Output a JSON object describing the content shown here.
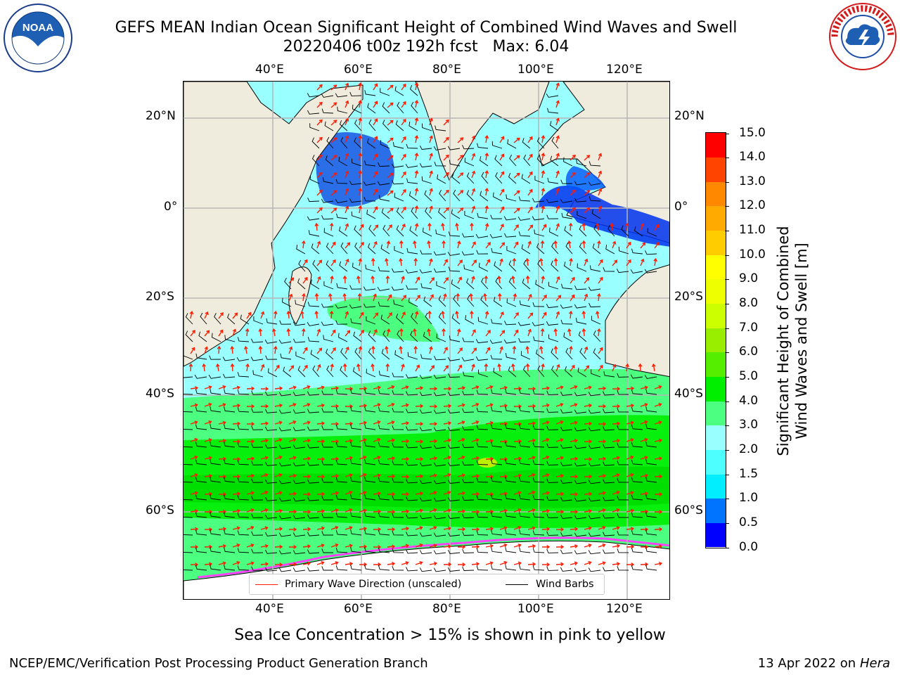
{
  "title": {
    "line1": "GEFS MEAN Indian Ocean Significant Height of Combined Wind Waves and Swell",
    "line2": "20220406 t00z 192h fcst   Max: 6.04"
  },
  "logos": {
    "left": {
      "text": "NOAA",
      "ring_text": "NATIONAL OCEANIC AND ATMOSPHERIC ADMINISTRATION · U.S. DEPARTMENT OF COMMERCE"
    },
    "right": {
      "ring_text": "NATIONAL WEATHER SERVICE"
    }
  },
  "map": {
    "lon_labels": [
      "40°E",
      "60°E",
      "80°E",
      "100°E",
      "120°E"
    ],
    "lat_labels": [
      "20°N",
      "0°",
      "20°S",
      "40°S",
      "60°S"
    ],
    "colors": {
      "land": "#efecdd",
      "grid": "#b5b5b5",
      "wave_arrow": "#ff1a00",
      "barb": "#000000"
    }
  },
  "legend": {
    "items": [
      {
        "label": "Primary Wave Direction (unscaled)",
        "color": "#ff1a00"
      },
      {
        "label": "Wind Barbs",
        "color": "#000000"
      }
    ]
  },
  "colorbar": {
    "title_line1": "Significant Height of Combined",
    "title_line2": "Wind Waves and Swell [m]",
    "tick_labels": [
      "0.0",
      "0.5",
      "1.0",
      "1.5",
      "2.0",
      "3.0",
      "4.0",
      "5.0",
      "6.0",
      "7.0",
      "8.0",
      "9.0",
      "10.0",
      "11.0",
      "12.0",
      "13.0",
      "14.0",
      "15.0"
    ],
    "colors": [
      "#0000ff",
      "#0073ff",
      "#00eeff",
      "#4dffff",
      "#99ffff",
      "#4dff80",
      "#00ee00",
      "#55ee00",
      "#99ee00",
      "#ccff00",
      "#eeff00",
      "#ffff00",
      "#ffcc00",
      "#ffaa00",
      "#ff8800",
      "#ff4400",
      "#ff0000"
    ]
  },
  "footnote": "Sea Ice Concentration > 15% is shown in pink to yellow",
  "footer": {
    "left": "NCEP/EMC/Verification Post Processing Product Generation Branch",
    "right_prefix": "13 Apr 2022 on ",
    "right_host": "Hera"
  }
}
